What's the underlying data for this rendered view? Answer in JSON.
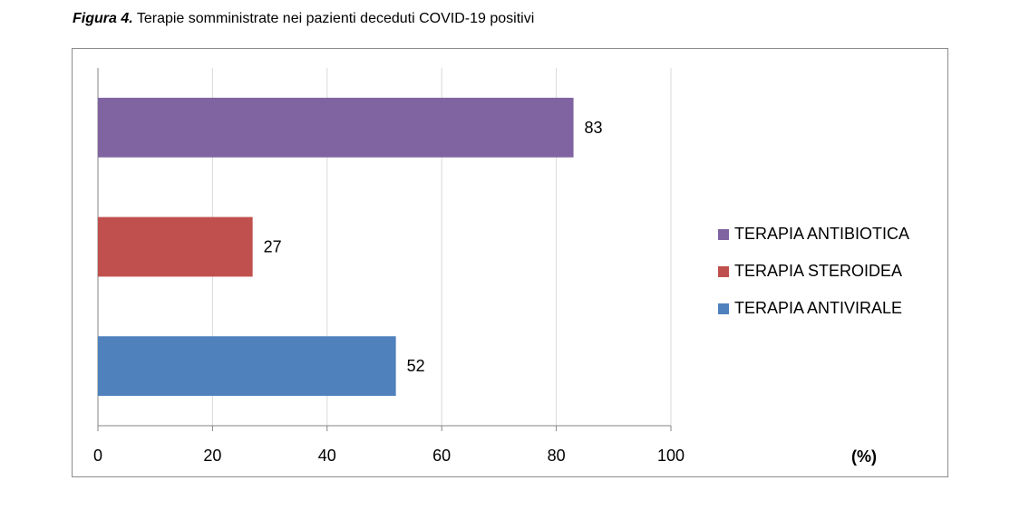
{
  "caption": {
    "label": "Figura 4.",
    "text": "Terapie somministrate nei pazienti deceduti COVID-19 positivi"
  },
  "chart_data": {
    "type": "bar",
    "orientation": "horizontal",
    "categories": [
      "TERAPIA ANTIBIOTICA",
      "TERAPIA STEROIDEA",
      "TERAPIA ANTIVIRALE"
    ],
    "values": [
      83,
      27,
      52
    ],
    "colors": [
      "#8064a2",
      "#c0504d",
      "#4f81bd"
    ],
    "xlim": [
      0,
      100
    ],
    "xticks": [
      0,
      20,
      40,
      60,
      80,
      100
    ],
    "xlabel": "(%)",
    "grid": true,
    "legend": "right",
    "data_labels": true
  }
}
